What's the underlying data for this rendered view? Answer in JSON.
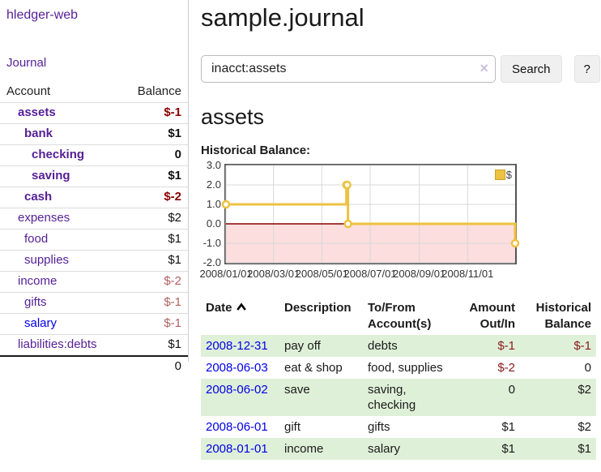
{
  "sidebar": {
    "brand": "hledger-web",
    "nav_journal": "Journal",
    "accounts_table": {
      "col_account": "Account",
      "col_balance": "Balance",
      "rows": [
        {
          "name": "assets",
          "indent": 1,
          "bold": true,
          "balance": "$-1",
          "balance_style": "neg-strong",
          "link_style": "purple"
        },
        {
          "name": "bank",
          "indent": 2,
          "bold": true,
          "balance": "$1",
          "balance_style": "pos",
          "link_style": "purple"
        },
        {
          "name": "checking",
          "indent": 3,
          "bold": true,
          "balance": "0",
          "balance_style": "pos",
          "link_style": "purple"
        },
        {
          "name": "saving",
          "indent": 3,
          "bold": true,
          "balance": "$1",
          "balance_style": "pos",
          "link_style": "purple"
        },
        {
          "name": "cash",
          "indent": 2,
          "bold": true,
          "balance": "$-2",
          "balance_style": "neg-strong",
          "link_style": "purple"
        },
        {
          "name": "expenses",
          "indent": 1,
          "bold": false,
          "balance": "$2",
          "balance_style": "pos",
          "link_style": "purple"
        },
        {
          "name": "food",
          "indent": 2,
          "bold": false,
          "balance": "$1",
          "balance_style": "pos",
          "link_style": "purple"
        },
        {
          "name": "supplies",
          "indent": 2,
          "bold": false,
          "balance": "$1",
          "balance_style": "pos",
          "link_style": "purple"
        },
        {
          "name": "income",
          "indent": 1,
          "bold": false,
          "balance": "$-2",
          "balance_style": "neg-muted",
          "link_style": "purple"
        },
        {
          "name": "gifts",
          "indent": 2,
          "bold": false,
          "balance": "$-1",
          "balance_style": "neg-muted",
          "link_style": "purple"
        },
        {
          "name": "salary",
          "indent": 2,
          "bold": false,
          "balance": "$-1",
          "balance_style": "neg-muted",
          "link_style": "blue"
        },
        {
          "name": "liabilities:debts",
          "indent": 1,
          "bold": false,
          "balance": "$1",
          "balance_style": "pos",
          "link_style": "purple"
        }
      ],
      "total": "0"
    }
  },
  "header": {
    "title": "sample.journal"
  },
  "search": {
    "value": "inacct:assets",
    "clear_icon": "×",
    "button_label": "Search",
    "help_label": "?"
  },
  "account_page": {
    "heading": "assets",
    "chart_label": "Historical Balance:"
  },
  "chart_data": {
    "type": "line",
    "subtype": "step-after",
    "title": "Historical Balance:",
    "legend": [
      {
        "label": "$",
        "color": "#edc240"
      }
    ],
    "legend_position": "top-right",
    "grid": true,
    "xlim": [
      "2008-01-01",
      "2008-12-31"
    ],
    "ylim": [
      -2,
      3
    ],
    "y_ticks": [
      {
        "v": 3,
        "label": "3.0"
      },
      {
        "v": 2,
        "label": "2.0"
      },
      {
        "v": 1,
        "label": "1.0"
      },
      {
        "v": 0,
        "label": "0.0"
      },
      {
        "v": -1,
        "label": "-1.0"
      },
      {
        "v": -2,
        "label": "-2.0"
      }
    ],
    "x_ticks": [
      {
        "date": "2008-01-01",
        "label": "2008/01/01"
      },
      {
        "date": "2008-03-01",
        "label": "2008/03/01"
      },
      {
        "date": "2008-05-01",
        "label": "2008/05/01"
      },
      {
        "date": "2008-07-01",
        "label": "2008/07/01"
      },
      {
        "date": "2008-09-01",
        "label": "2008/09/01"
      },
      {
        "date": "2008-11-01",
        "label": "2008/11/01"
      }
    ],
    "series": [
      {
        "name": "$",
        "color": "#edc240",
        "points": [
          [
            "2008-01-01",
            1
          ],
          [
            "2008-06-01",
            2
          ],
          [
            "2008-06-02",
            2
          ],
          [
            "2008-06-03",
            0
          ],
          [
            "2008-12-31",
            -1
          ]
        ]
      }
    ],
    "negative_region_fill": "#fcdede",
    "zero_line_color": "#8b0000",
    "grid_color": "#d8d8d8",
    "border_color": "#545454"
  },
  "register_table": {
    "headers": {
      "date": "Date",
      "description": "Description",
      "tofrom_line1": "To/From",
      "tofrom_line2": "Account(s)",
      "amount_line1": "Amount",
      "amount_line2": "Out/In",
      "balance_line1": "Historical",
      "balance_line2": "Balance"
    },
    "rows": [
      {
        "date": "2008-12-31",
        "description": "pay off",
        "accounts": "debts",
        "amount": "$-1",
        "amount_neg": true,
        "balance": "$-1",
        "balance_neg": true,
        "shade": true
      },
      {
        "date": "2008-06-03",
        "description": "eat & shop",
        "accounts": "food, supplies",
        "amount": "$-2",
        "amount_neg": true,
        "balance": "0",
        "balance_neg": false,
        "shade": false
      },
      {
        "date": "2008-06-02",
        "description": "save",
        "accounts": "saving, checking",
        "amount": "0",
        "amount_neg": false,
        "balance": "$2",
        "balance_neg": false,
        "shade": true
      },
      {
        "date": "2008-06-01",
        "description": "gift",
        "accounts": "gifts",
        "amount": "$1",
        "amount_neg": false,
        "balance": "$2",
        "balance_neg": false,
        "shade": false
      },
      {
        "date": "2008-01-01",
        "description": "income",
        "accounts": "salary",
        "amount": "$1",
        "amount_neg": false,
        "balance": "$1",
        "balance_neg": false,
        "shade": true
      }
    ]
  }
}
